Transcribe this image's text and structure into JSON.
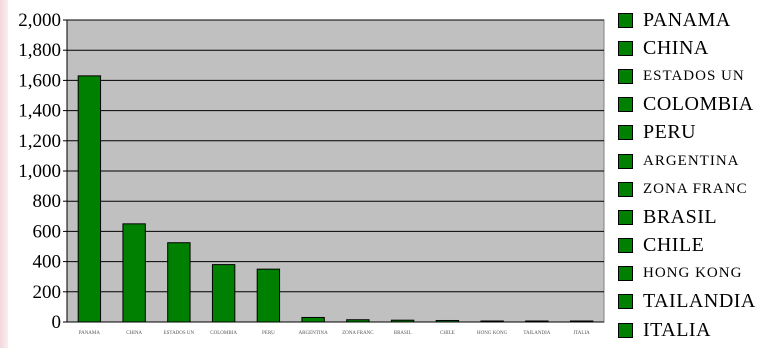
{
  "chart_data": {
    "type": "bar",
    "categories": [
      "PANAMA",
      "CHINA",
      "ESTADOS UN",
      "COLOMBIA",
      "PERU",
      "ARGENTINA",
      "ZONA FRANC",
      "BRASIL",
      "CHILE",
      "HONG KONG",
      "TAILANDIA",
      "ITALIA"
    ],
    "values": [
      1630,
      650,
      525,
      380,
      350,
      30,
      15,
      12,
      10,
      5,
      3,
      2
    ],
    "ylim": [
      0,
      2000
    ],
    "yticks": [
      0,
      200,
      400,
      600,
      800,
      1000,
      1200,
      1400,
      1600,
      1800,
      2000
    ],
    "ytick_labels": [
      "0",
      "200",
      "400",
      "600",
      "800",
      "1,000",
      "1,200",
      "1,400",
      "1,600",
      "1,800",
      "2,000"
    ],
    "grid": true,
    "legend_position": "right",
    "colors": {
      "bar": "#008000",
      "plot_background": "#c0c0c0",
      "gridline": "#000000"
    }
  },
  "legend": {
    "items": [
      {
        "label": "PANAMA",
        "small": false
      },
      {
        "label": "CHINA",
        "small": false
      },
      {
        "label": "ESTADOS UN",
        "small": true
      },
      {
        "label": "COLOMBIA",
        "small": false
      },
      {
        "label": "PERU",
        "small": false
      },
      {
        "label": "ARGENTINA",
        "small": true
      },
      {
        "label": "ZONA FRANC",
        "small": true
      },
      {
        "label": "BRASIL",
        "small": false
      },
      {
        "label": "CHILE",
        "small": false
      },
      {
        "label": "HONG KONG",
        "small": true
      },
      {
        "label": "TAILANDIA",
        "small": false
      },
      {
        "label": "ITALIA",
        "small": false
      }
    ]
  }
}
